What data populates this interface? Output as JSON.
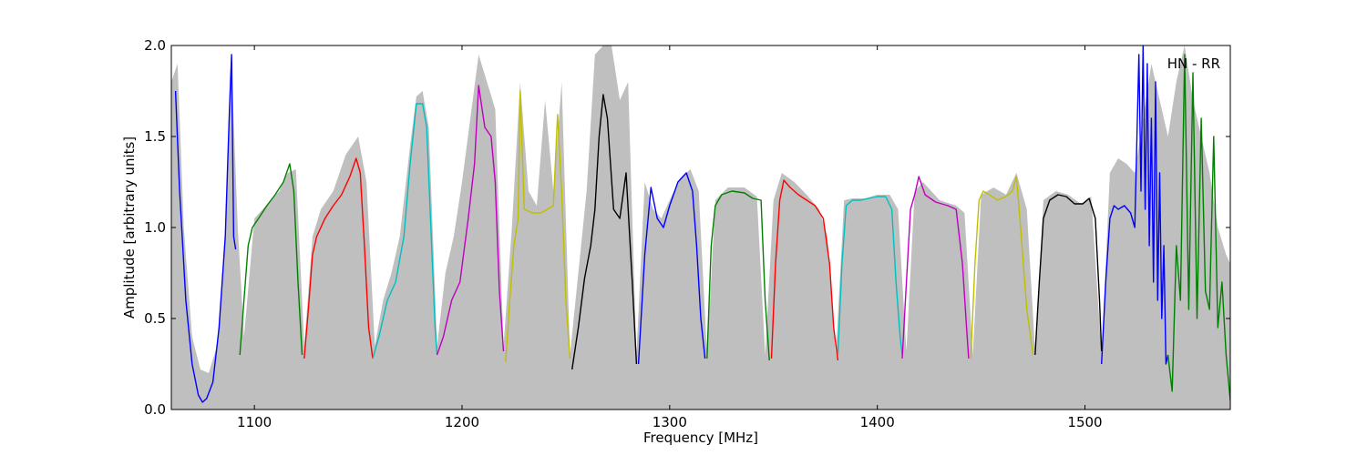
{
  "chart_data": {
    "type": "line",
    "title": "",
    "annotation": "HN - RR",
    "xlabel": "Frequency [MHz]",
    "ylabel": "Amplitude [arbitrary units]",
    "xlim": [
      1060,
      1570
    ],
    "ylim": [
      0.0,
      2.0
    ],
    "xticks": [
      1100,
      1200,
      1300,
      1400,
      1500
    ],
    "xtick_labels": [
      "1100",
      "1200",
      "1300",
      "1400",
      "1500"
    ],
    "yticks": [
      0.0,
      0.5,
      1.0,
      1.5,
      2.0
    ],
    "ytick_labels": [
      "0.0",
      "0.5",
      "1.0",
      "1.5",
      "2.0"
    ],
    "grid": false,
    "legend": "none",
    "envelope": {
      "color": "#bfbfbf",
      "x": [
        1060,
        1063,
        1066,
        1070,
        1074,
        1078,
        1082,
        1086,
        1089,
        1092,
        1095,
        1100,
        1108,
        1112,
        1116,
        1120,
        1124,
        1128,
        1132,
        1138,
        1144,
        1150,
        1154,
        1158,
        1162,
        1166,
        1170,
        1175,
        1178,
        1181,
        1184,
        1188,
        1192,
        1196,
        1200,
        1204,
        1208,
        1212,
        1216,
        1220,
        1224,
        1228,
        1232,
        1236,
        1240,
        1244,
        1248,
        1252,
        1256,
        1260,
        1264,
        1268,
        1272,
        1276,
        1280,
        1284,
        1288,
        1292,
        1296,
        1300,
        1305,
        1310,
        1314,
        1318,
        1322,
        1328,
        1336,
        1342,
        1346,
        1350,
        1354,
        1360,
        1366,
        1372,
        1376,
        1380,
        1384,
        1388,
        1394,
        1400,
        1406,
        1410,
        1414,
        1418,
        1422,
        1430,
        1438,
        1442,
        1446,
        1450,
        1456,
        1462,
        1467,
        1472,
        1476,
        1480,
        1486,
        1492,
        1498,
        1503,
        1508,
        1512,
        1516,
        1520,
        1524,
        1528,
        1532,
        1536,
        1540,
        1544,
        1548,
        1552,
        1556,
        1560,
        1564,
        1568,
        1570
      ],
      "y": [
        1.8,
        1.9,
        1.0,
        0.4,
        0.22,
        0.2,
        0.35,
        1.0,
        1.9,
        1.0,
        0.4,
        1.05,
        1.15,
        1.2,
        1.3,
        1.32,
        0.35,
        0.95,
        1.1,
        1.2,
        1.4,
        1.5,
        1.25,
        0.35,
        0.6,
        0.75,
        0.95,
        1.45,
        1.72,
        1.75,
        1.55,
        0.35,
        0.75,
        0.95,
        1.25,
        1.6,
        1.95,
        1.8,
        1.65,
        0.35,
        1.0,
        1.8,
        1.2,
        1.12,
        1.7,
        1.2,
        1.8,
        0.3,
        0.75,
        1.2,
        1.95,
        2.0,
        2.0,
        1.7,
        1.8,
        0.3,
        1.25,
        1.1,
        1.05,
        1.15,
        1.27,
        1.32,
        1.2,
        0.3,
        1.15,
        1.22,
        1.22,
        1.17,
        0.3,
        1.15,
        1.3,
        1.25,
        1.18,
        1.1,
        0.95,
        0.3,
        1.15,
        1.16,
        1.16,
        1.18,
        1.18,
        1.1,
        0.32,
        1.2,
        1.25,
        1.15,
        1.12,
        1.08,
        0.3,
        1.18,
        1.22,
        1.18,
        1.3,
        1.1,
        0.32,
        1.15,
        1.2,
        1.18,
        1.13,
        1.17,
        0.3,
        1.3,
        1.38,
        1.35,
        1.3,
        1.6,
        1.9,
        1.7,
        1.5,
        1.8,
        2.0,
        1.7,
        1.5,
        1.3,
        1.0,
        0.85,
        0.8
      ]
    },
    "series": [
      {
        "color": "#0000ff",
        "x": [
          1062,
          1064,
          1067,
          1070,
          1073,
          1075,
          1077,
          1080,
          1083,
          1086,
          1088,
          1089,
          1090,
          1091
        ],
        "y": [
          1.75,
          1.2,
          0.6,
          0.25,
          0.08,
          0.04,
          0.06,
          0.15,
          0.45,
          0.95,
          1.65,
          1.95,
          0.95,
          0.88
        ]
      },
      {
        "color": "#008000",
        "x": [
          1093,
          1095,
          1097,
          1099,
          1102,
          1106,
          1110,
          1114,
          1117,
          1119,
          1121,
          1123
        ],
        "y": [
          0.3,
          0.6,
          0.9,
          1.0,
          1.05,
          1.12,
          1.18,
          1.25,
          1.35,
          1.2,
          0.7,
          0.3
        ]
      },
      {
        "color": "#ff0000",
        "x": [
          1124,
          1126,
          1128,
          1130,
          1134,
          1138,
          1142,
          1146,
          1149,
          1151,
          1153,
          1155,
          1157
        ],
        "y": [
          0.28,
          0.55,
          0.85,
          0.95,
          1.05,
          1.12,
          1.18,
          1.28,
          1.38,
          1.3,
          0.9,
          0.45,
          0.28
        ]
      },
      {
        "color": "#00bfbf",
        "x": [
          1157,
          1160,
          1164,
          1168,
          1172,
          1175,
          1178,
          1181,
          1183,
          1185,
          1187,
          1188
        ],
        "y": [
          0.28,
          0.4,
          0.6,
          0.7,
          0.95,
          1.35,
          1.68,
          1.68,
          1.55,
          1.0,
          0.45,
          0.3
        ]
      },
      {
        "color": "#bf00bf",
        "x": [
          1188,
          1191,
          1195,
          1199,
          1203,
          1206,
          1208,
          1211,
          1214,
          1216,
          1218,
          1220
        ],
        "y": [
          0.3,
          0.4,
          0.6,
          0.7,
          1.05,
          1.35,
          1.78,
          1.55,
          1.5,
          1.25,
          0.65,
          0.32
        ]
      },
      {
        "color": "#bfbf00",
        "x": [
          1221,
          1223,
          1225,
          1227,
          1228,
          1230,
          1234,
          1238,
          1241,
          1244,
          1246,
          1248,
          1250,
          1252
        ],
        "y": [
          0.26,
          0.6,
          0.9,
          1.05,
          1.75,
          1.1,
          1.08,
          1.08,
          1.1,
          1.12,
          1.62,
          1.2,
          0.6,
          0.28
        ]
      },
      {
        "color": "#000000",
        "x": [
          1253,
          1256,
          1259,
          1262,
          1264,
          1266,
          1268,
          1270,
          1273,
          1276,
          1279,
          1282,
          1284
        ],
        "y": [
          0.22,
          0.45,
          0.72,
          0.9,
          1.1,
          1.5,
          1.73,
          1.6,
          1.1,
          1.05,
          1.3,
          0.7,
          0.25
        ]
      },
      {
        "color": "#0000ff",
        "x": [
          1285,
          1288,
          1291,
          1294,
          1297,
          1300,
          1304,
          1308,
          1311,
          1313,
          1315,
          1317
        ],
        "y": [
          0.25,
          0.85,
          1.22,
          1.05,
          1.0,
          1.12,
          1.25,
          1.3,
          1.2,
          0.9,
          0.5,
          0.28
        ]
      },
      {
        "color": "#008000",
        "x": [
          1318,
          1320,
          1322,
          1325,
          1330,
          1336,
          1340,
          1344,
          1346,
          1348
        ],
        "y": [
          0.28,
          0.9,
          1.12,
          1.18,
          1.2,
          1.19,
          1.16,
          1.15,
          0.6,
          0.27
        ]
      },
      {
        "color": "#ff0000",
        "x": [
          1349,
          1351,
          1353,
          1355,
          1358,
          1362,
          1366,
          1370,
          1374,
          1377,
          1379,
          1381
        ],
        "y": [
          0.28,
          0.8,
          1.15,
          1.26,
          1.22,
          1.18,
          1.15,
          1.12,
          1.05,
          0.8,
          0.45,
          0.27
        ]
      },
      {
        "color": "#00bfbf",
        "x": [
          1381,
          1383,
          1385,
          1388,
          1392,
          1396,
          1400,
          1404,
          1407,
          1409,
          1411,
          1412
        ],
        "y": [
          0.3,
          0.8,
          1.12,
          1.15,
          1.15,
          1.16,
          1.17,
          1.17,
          1.1,
          0.7,
          0.4,
          0.3
        ]
      },
      {
        "color": "#bf00bf",
        "x": [
          1412,
          1414,
          1416,
          1418,
          1420,
          1423,
          1428,
          1434,
          1438,
          1441,
          1443,
          1444
        ],
        "y": [
          0.28,
          0.7,
          1.1,
          1.18,
          1.28,
          1.18,
          1.14,
          1.12,
          1.1,
          0.8,
          0.45,
          0.28
        ]
      },
      {
        "color": "#bfbf00",
        "x": [
          1445,
          1447,
          1449,
          1451,
          1454,
          1458,
          1462,
          1465,
          1467,
          1469,
          1472,
          1475
        ],
        "y": [
          0.28,
          0.8,
          1.15,
          1.2,
          1.18,
          1.15,
          1.17,
          1.2,
          1.28,
          1.0,
          0.55,
          0.3
        ]
      },
      {
        "color": "#000000",
        "x": [
          1476,
          1478,
          1480,
          1483,
          1487,
          1491,
          1495,
          1499,
          1502,
          1505,
          1507,
          1508
        ],
        "y": [
          0.3,
          0.7,
          1.05,
          1.15,
          1.18,
          1.17,
          1.13,
          1.13,
          1.16,
          1.05,
          0.6,
          0.32
        ]
      },
      {
        "color": "#0000ff",
        "x": [
          1508,
          1510,
          1512,
          1514,
          1516,
          1519,
          1522,
          1524,
          1526,
          1527,
          1528,
          1529,
          1530,
          1531,
          1532,
          1533,
          1534,
          1535,
          1536,
          1537,
          1538,
          1539,
          1540
        ],
        "y": [
          0.25,
          0.7,
          1.05,
          1.12,
          1.1,
          1.12,
          1.08,
          1.0,
          1.95,
          1.2,
          2.0,
          1.1,
          1.9,
          0.9,
          1.6,
          0.7,
          1.8,
          0.6,
          1.3,
          0.5,
          0.9,
          0.25,
          0.3
        ]
      },
      {
        "color": "#008000",
        "x": [
          1540,
          1542,
          1544,
          1546,
          1548,
          1550,
          1552,
          1554,
          1556,
          1558,
          1560,
          1562,
          1564,
          1566,
          1568,
          1570
        ],
        "y": [
          0.3,
          0.1,
          0.9,
          0.6,
          1.95,
          0.55,
          1.85,
          0.5,
          1.6,
          0.65,
          0.55,
          1.5,
          0.45,
          0.7,
          0.3,
          0.05
        ]
      }
    ]
  }
}
